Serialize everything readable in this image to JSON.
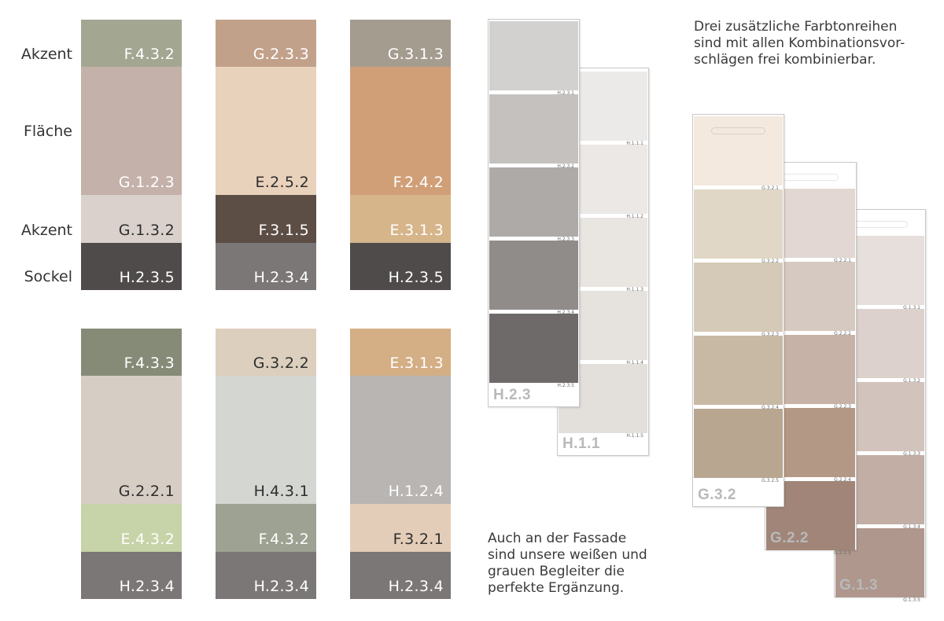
{
  "labels": {
    "akzent_top": "Akzent",
    "flaeche": "Fläche",
    "akzent_mid": "Akzent",
    "sockel": "Sockel"
  },
  "combos_top": [
    [
      {
        "code": "F.4.3.2",
        "color": "#a3a792"
      },
      {
        "code": "G.1.2.3",
        "color": "#c4b1a9"
      },
      {
        "code": "G.1.3.2",
        "color": "#dad0cc"
      },
      {
        "code": "H.2.3.5",
        "color": "#4f4b4b"
      }
    ],
    [
      {
        "code": "G.2.3.3",
        "color": "#c2a18b"
      },
      {
        "code": "E.2.5.2",
        "color": "#e9d2bb"
      },
      {
        "code": "F.3.1.5",
        "color": "#5c4d45"
      },
      {
        "code": "H.2.3.4",
        "color": "#7b7776"
      }
    ],
    [
      {
        "code": "G.3.1.3",
        "color": "#a59c90"
      },
      {
        "code": "F.2.4.2",
        "color": "#d19f77"
      },
      {
        "code": "E.3.1.3",
        "color": "#d6b58b"
      },
      {
        "code": "H.2.3.5",
        "color": "#4f4b4b"
      }
    ]
  ],
  "combos_bottom": [
    [
      {
        "code": "F.4.3.3",
        "color": "#868b77"
      },
      {
        "code": "G.2.2.1",
        "color": "#d6cdc4"
      },
      {
        "code": "E.4.3.2",
        "color": "#c7d3a8"
      },
      {
        "code": "H.2.3.4",
        "color": "#7b7776"
      }
    ],
    [
      {
        "code": "G.3.2.2",
        "color": "#dccfbd"
      },
      {
        "code": "H.4.3.1",
        "color": "#d3d6d1"
      },
      {
        "code": "F.4.3.2",
        "color": "#9da292"
      },
      {
        "code": "H.2.3.4",
        "color": "#7b7776"
      }
    ],
    [
      {
        "code": "E.3.1.3",
        "color": "#d4ae84"
      },
      {
        "code": "H.1.2.4",
        "color": "#b8b5b3"
      },
      {
        "code": "F.3.2.1",
        "color": "#e4cdb8"
      },
      {
        "code": "H.2.3.4",
        "color": "#7b7776"
      }
    ]
  ],
  "strips": [
    {
      "name": "H.1.1",
      "chips": [
        {
          "code": "H.1.1.1",
          "color": "#eceae8"
        },
        {
          "code": "H.1.1.2",
          "color": "#ebe8e5"
        },
        {
          "code": "H.1.1.3",
          "color": "#e9e6e2"
        },
        {
          "code": "H.1.1.4",
          "color": "#e6e3de"
        },
        {
          "code": "H.1.1.5",
          "color": "#e3dfda"
        }
      ]
    },
    {
      "name": "H.2.3",
      "chips": [
        {
          "code": "H.2.3.1",
          "color": "#d2d1d0"
        },
        {
          "code": "H.2.3.2",
          "color": "#c4c1bf"
        },
        {
          "code": "H.2.3.3",
          "color": "#aeaaa8"
        },
        {
          "code": "H.2.3.4",
          "color": "#908c8a"
        },
        {
          "code": "H.2.3.5",
          "color": "#6e6a69"
        }
      ]
    },
    {
      "name": "G.1.3",
      "chips": [
        {
          "code": "G.1.3.1",
          "color": "#e6dfdb"
        },
        {
          "code": "G.1.3.2",
          "color": "#dcd1cc"
        },
        {
          "code": "G.1.3.3",
          "color": "#d2c3bc"
        },
        {
          "code": "G.1.3.4",
          "color": "#c2aea5"
        },
        {
          "code": "G.1.3.5",
          "color": "#af978d"
        }
      ]
    },
    {
      "name": "G.2.2",
      "chips": [
        {
          "code": "G.2.2.1",
          "color": "#e2d7d2"
        },
        {
          "code": "G.2.2.2",
          "color": "#d6c9c2"
        },
        {
          "code": "G.2.2.3",
          "color": "#c6b2a6"
        },
        {
          "code": "G.2.2.4",
          "color": "#b49886"
        },
        {
          "code": "G.2.2.5",
          "color": "#a08578"
        }
      ]
    },
    {
      "name": "G.3.2",
      "chips": [
        {
          "code": "G.3.2.1",
          "color": "#f3e9de"
        },
        {
          "code": "G.3.2.2",
          "color": "#e1d7c6"
        },
        {
          "code": "G.3.2.3",
          "color": "#d5c9b7"
        },
        {
          "code": "G.3.2.4",
          "color": "#c8b9a4"
        },
        {
          "code": "G.3.2.5",
          "color": "#b8a690"
        }
      ]
    }
  ],
  "text_top_right": [
    "Drei zusätzliche Farbtonreihen",
    "sind mit allen Kombinationsvor-",
    "schlägen frei kombinierbar."
  ],
  "text_bottom_middle": [
    "Auch an der Fassade",
    "sind unsere weißen und",
    "grauen Begleiter die",
    "perfekte Ergänzung."
  ]
}
